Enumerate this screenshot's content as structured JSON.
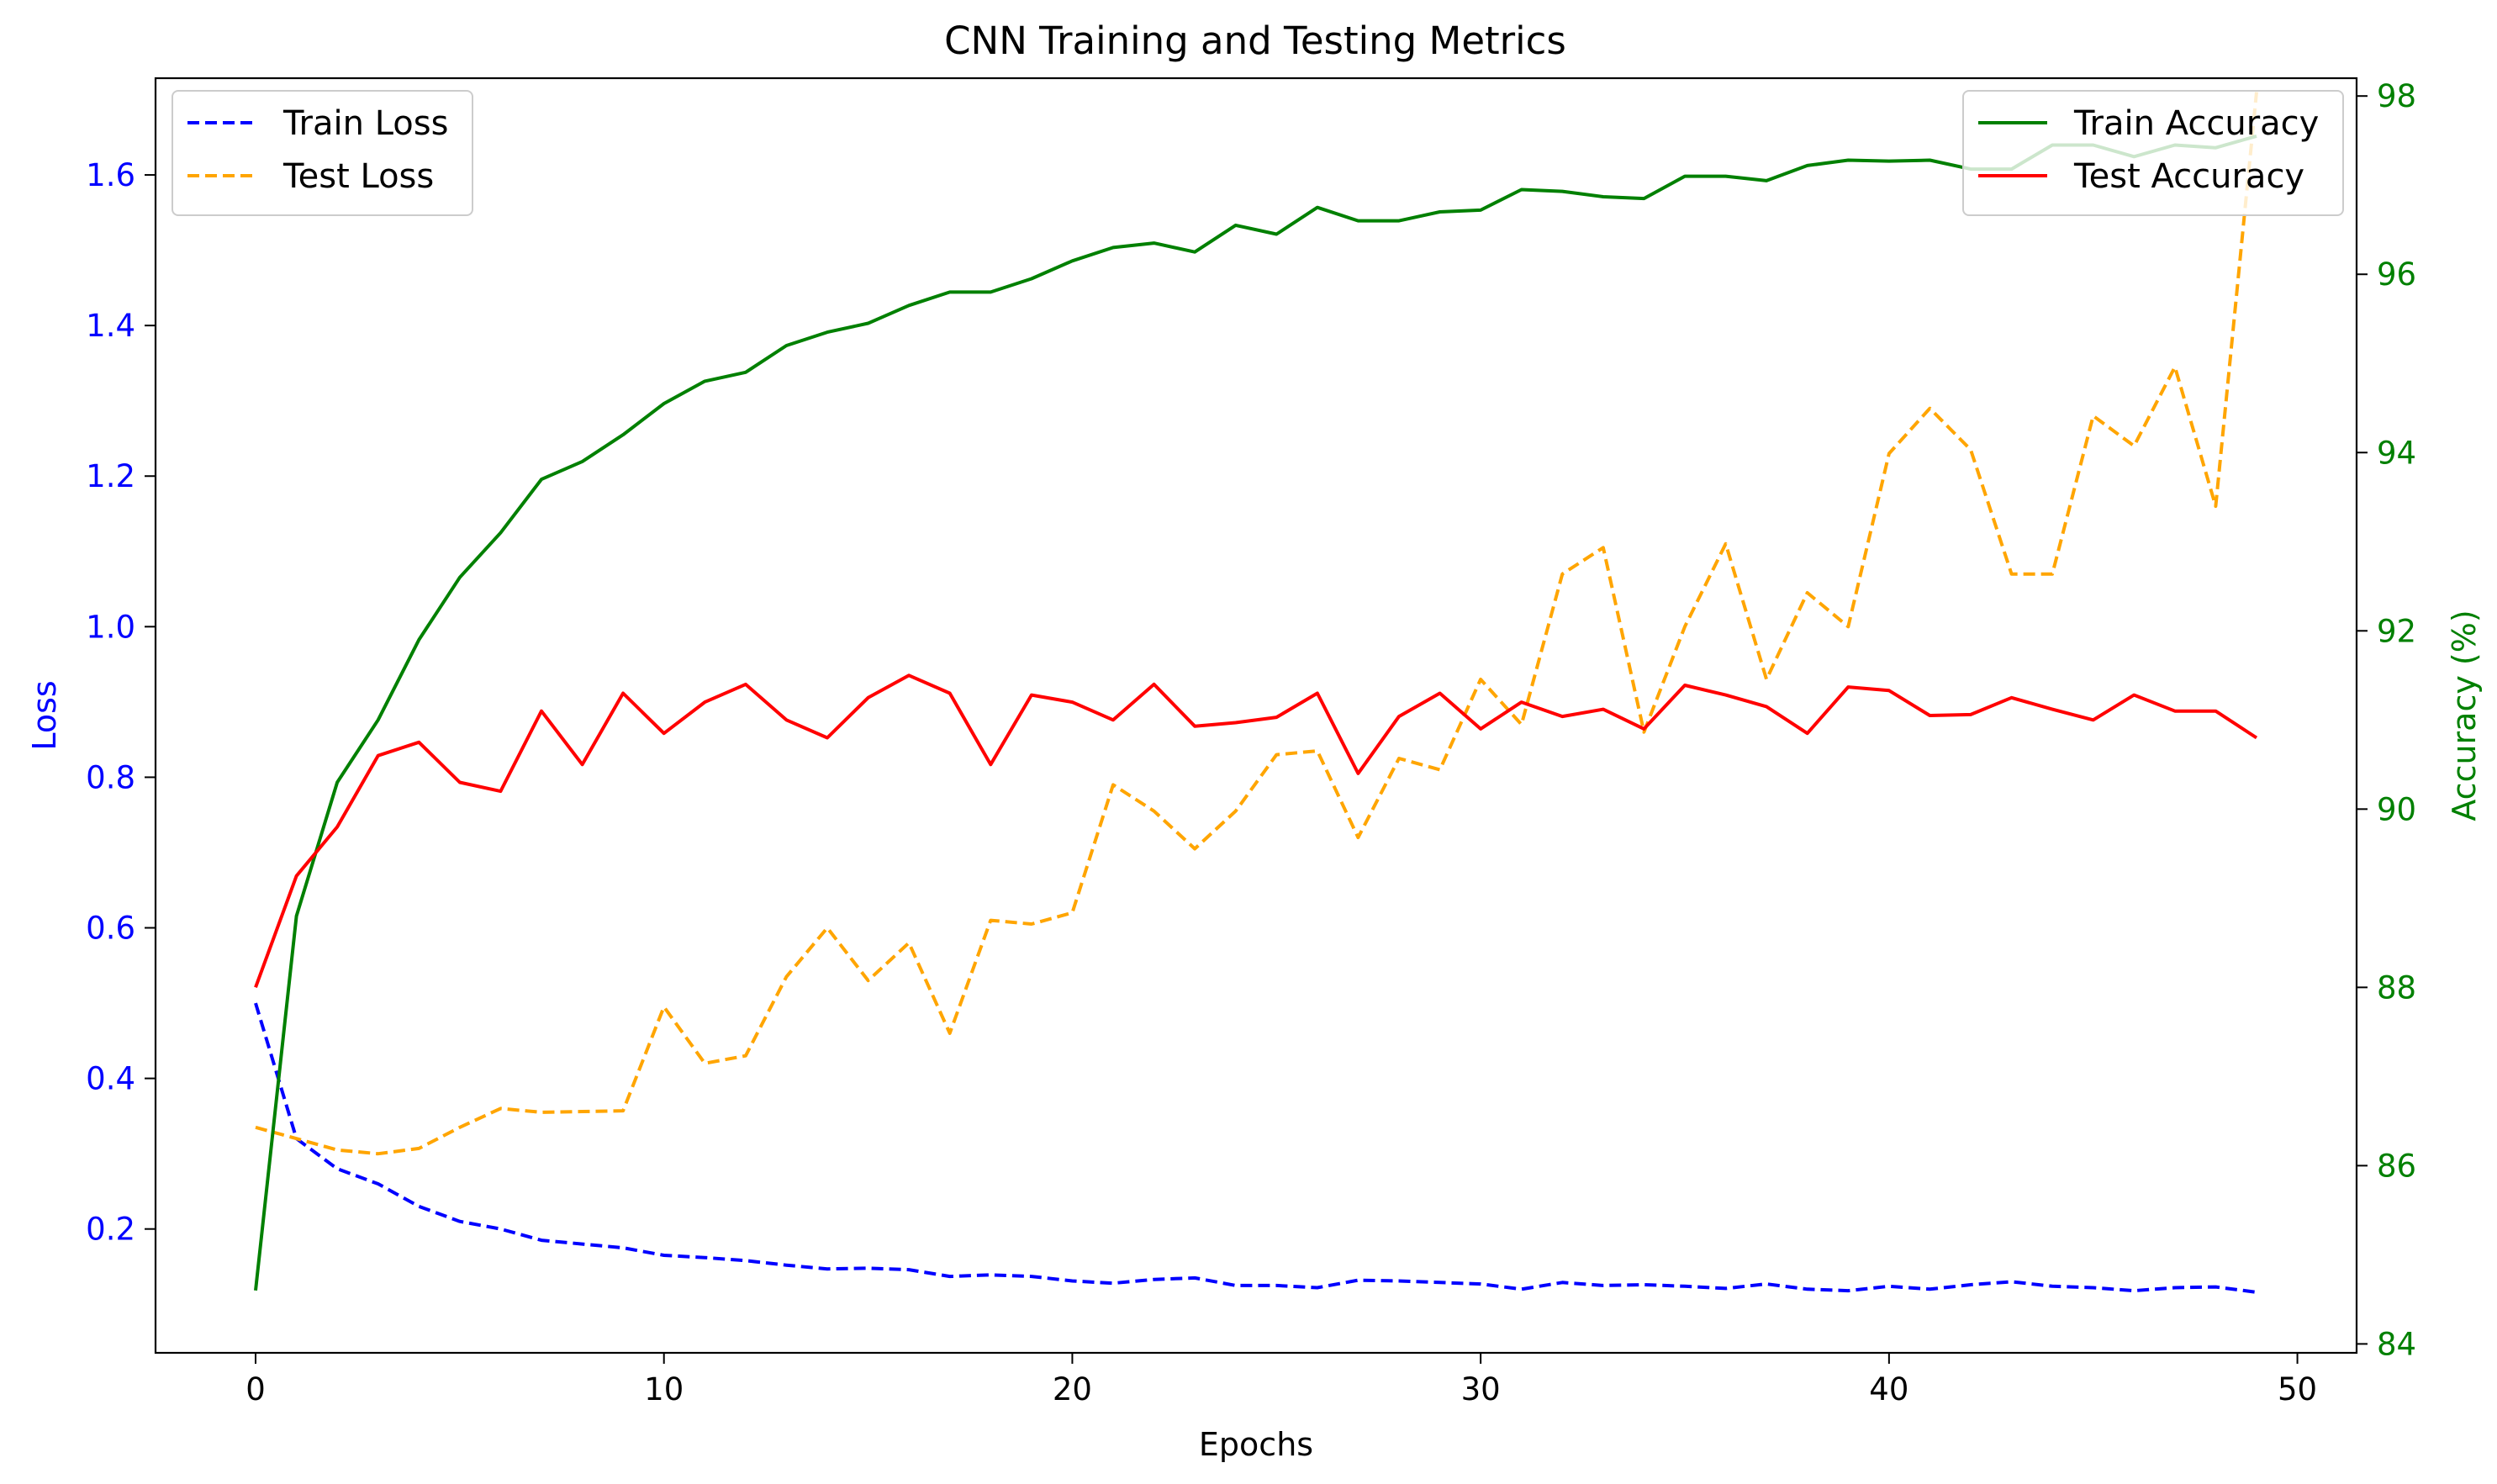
{
  "chart_data": {
    "type": "line",
    "title": "CNN Training and Testing Metrics",
    "xlabel": "Epochs",
    "ylabel_left": "Loss",
    "ylabel_right": "Accuracy (%)",
    "xlim": [
      -2.45,
      51.45
    ],
    "ylim_left": [
      0.0355,
      1.7285
    ],
    "ylim_right": [
      83.9,
      98.2
    ],
    "xticks": [
      0,
      10,
      20,
      30,
      40,
      50
    ],
    "yticks_left": [
      0.2,
      0.4,
      0.6,
      0.8,
      1.0,
      1.2,
      1.4,
      1.6
    ],
    "yticks_right": [
      84,
      86,
      88,
      90,
      92,
      94,
      96,
      98
    ],
    "colors": {
      "left_axis": "#0000ff",
      "right_axis": "#008000"
    },
    "legend_left_position": "upper-left",
    "legend_right_position": "upper-right",
    "x": [
      0,
      1,
      2,
      3,
      4,
      5,
      6,
      7,
      8,
      9,
      10,
      11,
      12,
      13,
      14,
      15,
      16,
      17,
      18,
      19,
      20,
      21,
      22,
      23,
      24,
      25,
      26,
      27,
      28,
      29,
      30,
      31,
      32,
      33,
      34,
      35,
      36,
      37,
      38,
      39,
      40,
      41,
      42,
      43,
      44,
      45,
      46,
      47,
      48,
      49
    ],
    "series": [
      {
        "name": "Train Loss",
        "axis": "left",
        "color": "#0000ff",
        "style": "dashed",
        "values": [
          0.5,
          0.32,
          0.28,
          0.26,
          0.23,
          0.21,
          0.2,
          0.185,
          0.18,
          0.175,
          0.165,
          0.162,
          0.158,
          0.152,
          0.147,
          0.148,
          0.146,
          0.137,
          0.139,
          0.137,
          0.131,
          0.128,
          0.133,
          0.135,
          0.125,
          0.125,
          0.122,
          0.132,
          0.131,
          0.129,
          0.127,
          0.12,
          0.129,
          0.125,
          0.126,
          0.124,
          0.121,
          0.127,
          0.12,
          0.118,
          0.124,
          0.12,
          0.126,
          0.13,
          0.124,
          0.122,
          0.118,
          0.122,
          0.123,
          0.116
        ]
      },
      {
        "name": "Test Loss",
        "axis": "left",
        "color": "#ffa500",
        "style": "dashed",
        "values": [
          0.335,
          0.32,
          0.305,
          0.3,
          0.307,
          0.335,
          0.36,
          0.355,
          0.356,
          0.357,
          0.495,
          0.42,
          0.43,
          0.535,
          0.6,
          0.53,
          0.58,
          0.46,
          0.61,
          0.605,
          0.62,
          0.79,
          0.755,
          0.705,
          0.755,
          0.83,
          0.835,
          0.72,
          0.825,
          0.81,
          0.93,
          0.87,
          1.07,
          1.105,
          0.86,
          1.0,
          1.11,
          0.93,
          1.045,
          1.0,
          1.23,
          1.29,
          1.235,
          1.07,
          1.07,
          1.28,
          1.24,
          1.345,
          1.16,
          1.71
        ]
      },
      {
        "name": "Train Accuracy",
        "axis": "right",
        "color": "#008000",
        "style": "solid",
        "values": [
          84.6,
          88.8,
          90.3,
          91.0,
          91.9,
          92.6,
          93.1,
          93.7,
          93.9,
          94.2,
          94.55,
          94.8,
          94.9,
          95.2,
          95.35,
          95.45,
          95.65,
          95.8,
          95.8,
          95.95,
          96.15,
          96.3,
          96.35,
          96.25,
          96.55,
          96.45,
          96.75,
          96.6,
          96.6,
          96.7,
          96.72,
          96.95,
          96.93,
          96.87,
          96.85,
          97.1,
          97.1,
          97.05,
          97.22,
          97.28,
          97.27,
          97.28,
          97.18,
          97.18,
          97.45,
          97.45,
          97.32,
          97.45,
          97.42,
          97.55
        ]
      },
      {
        "name": "Test Accuracy",
        "axis": "right",
        "color": "#ff0000",
        "style": "solid",
        "values": [
          88.0,
          89.25,
          89.8,
          90.6,
          90.75,
          90.3,
          90.2,
          91.1,
          90.5,
          91.3,
          90.85,
          91.2,
          91.4,
          91.0,
          90.8,
          91.25,
          91.5,
          91.3,
          90.5,
          91.28,
          91.2,
          91.0,
          91.4,
          90.93,
          90.97,
          91.03,
          91.3,
          90.4,
          91.04,
          91.3,
          90.9,
          91.2,
          91.04,
          91.12,
          90.9,
          91.39,
          91.28,
          91.15,
          90.85,
          91.37,
          91.33,
          91.05,
          91.06,
          91.25,
          91.12,
          91.0,
          91.28,
          91.1,
          91.1,
          90.8
        ]
      }
    ]
  }
}
